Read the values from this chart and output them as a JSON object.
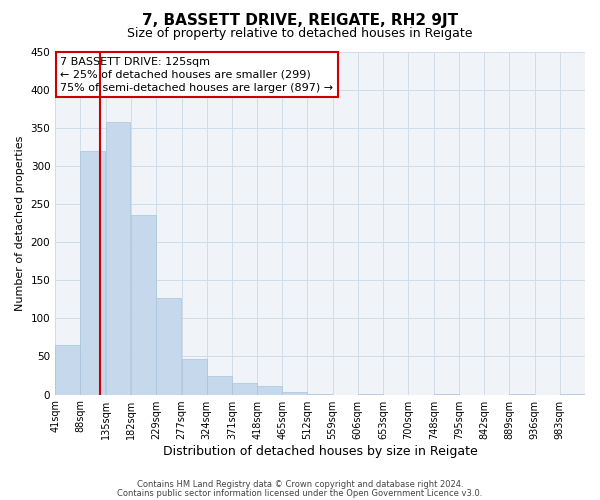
{
  "title": "7, BASSETT DRIVE, REIGATE, RH2 9JT",
  "subtitle": "Size of property relative to detached houses in Reigate",
  "xlabel": "Distribution of detached houses by size in Reigate",
  "ylabel": "Number of detached properties",
  "bar_values": [
    65,
    320,
    357,
    235,
    127,
    47,
    25,
    15,
    11,
    4,
    1,
    0,
    1,
    0,
    0,
    1,
    0,
    0,
    1,
    0,
    1
  ],
  "bin_edges": [
    41,
    88,
    135,
    182,
    229,
    277,
    324,
    371,
    418,
    465,
    512,
    559,
    606,
    653,
    700,
    748,
    795,
    842,
    889,
    936,
    983,
    1030
  ],
  "tick_labels": [
    "41sqm",
    "88sqm",
    "135sqm",
    "182sqm",
    "229sqm",
    "277sqm",
    "324sqm",
    "371sqm",
    "418sqm",
    "465sqm",
    "512sqm",
    "559sqm",
    "606sqm",
    "653sqm",
    "700sqm",
    "748sqm",
    "795sqm",
    "842sqm",
    "889sqm",
    "936sqm",
    "983sqm"
  ],
  "bar_color": "#c6d9ec",
  "bar_edge_color": "#a8c4dc",
  "grid_color": "#d0dce8",
  "vline_x": 125,
  "vline_color": "#cc0000",
  "annotation_title": "7 BASSETT DRIVE: 125sqm",
  "annotation_line1": "← 25% of detached houses are smaller (299)",
  "annotation_line2": "75% of semi-detached houses are larger (897) →",
  "footer1": "Contains HM Land Registry data © Crown copyright and database right 2024.",
  "footer2": "Contains public sector information licensed under the Open Government Licence v3.0.",
  "ylim": [
    0,
    450
  ],
  "background_color": "#ffffff",
  "plot_background": "#f0f4f8",
  "title_fontsize": 11,
  "subtitle_fontsize": 9,
  "ylabel_fontsize": 8,
  "xlabel_fontsize": 9,
  "annotation_fontsize": 8,
  "tick_fontsize": 7
}
